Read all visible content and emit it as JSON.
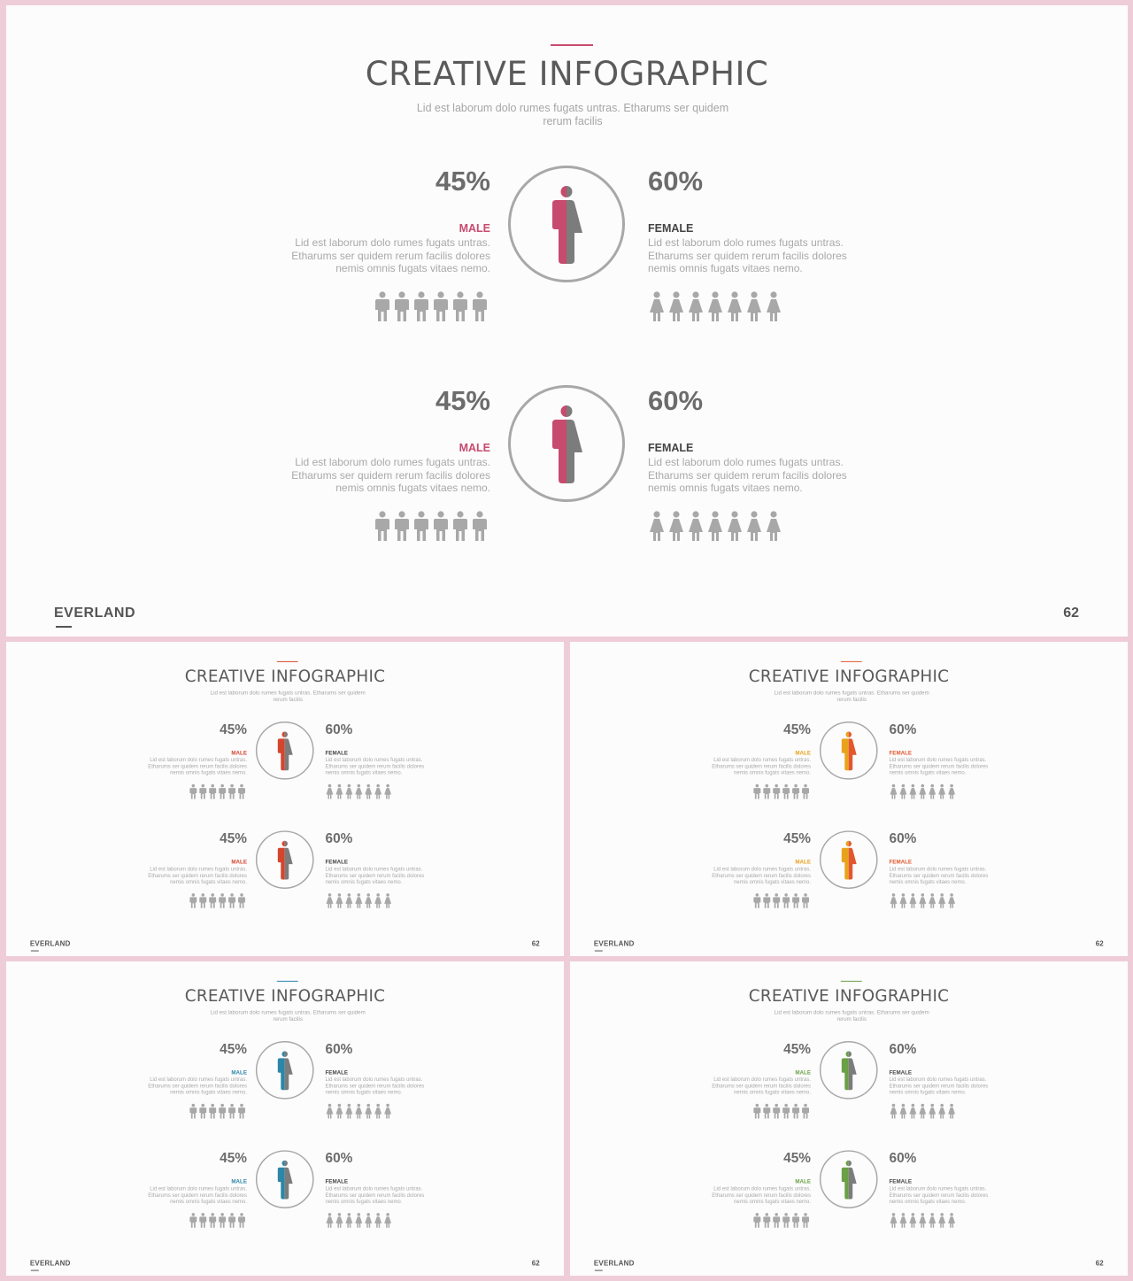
{
  "slides": [
    {
      "title": "CREATIVE INFOGRAPHIC",
      "subtitle": "Lid est laborum dolo rumes fugats untras. Etharums ser quidem rerum facilis",
      "accent": "#c74b6e",
      "male_label_color": "#c74b6e",
      "female_label_color": "#444444",
      "figure_left_color": "#c74b6e",
      "rows": [
        {
          "male": {
            "percent": "45%",
            "label": "MALE",
            "description": "Lid est laborum dolo rumes fugats untras. Etharums ser quidem rerum facilis dolores nemis omnis fugats vitaes nemo."
          },
          "female": {
            "percent": "60%",
            "label": "FEMALE",
            "description": "Lid est laborum dolo rumes fugats untras. Etharums ser quidem rerum facilis dolores nemis omnis fugats vitaes nemo."
          }
        },
        {
          "male": {
            "percent": "45%",
            "label": "MALE",
            "description": "Lid est laborum dolo rumes fugats untras. Etharums ser quidem rerum facilis dolores nemis omnis fugats vitaes nemo."
          },
          "female": {
            "percent": "60%",
            "label": "FEMALE",
            "description": "Lid est laborum dolo rumes fugats untras. Etharums ser quidem rerum facilis dolores nemis omnis fugats vitaes nemo."
          }
        }
      ],
      "brand": "EVERLAND",
      "page_number": "62"
    },
    {
      "title": "CREATIVE INFOGRAPHIC",
      "subtitle": "Lid est laborum dolo rumes fugats untras. Etharums ser quidem rerum facilis",
      "accent": "#d4452e",
      "male_label_color": "#d4452e",
      "female_label_color": "#444444",
      "figure_left_color": "#d4452e",
      "rows": [
        {
          "male": {
            "percent": "45%",
            "label": "MALE",
            "description": "Lid est laborum dolo rumes fugats untras. Etharums ser quidem rerum facilis dolores nemis omnis fugats vitaes nemo."
          },
          "female": {
            "percent": "60%",
            "label": "FEMALE",
            "description": "Lid est laborum dolo rumes fugats untras. Etharums ser quidem rerum facilis dolores nemis omnis fugats vitaes nemo."
          }
        },
        {
          "male": {
            "percent": "45%",
            "label": "MALE",
            "description": "Lid est laborum dolo rumes fugats untras. Etharums ser quidem rerum facilis dolores nemis omnis fugats vitaes nemo."
          },
          "female": {
            "percent": "60%",
            "label": "FEMALE",
            "description": "Lid est laborum dolo rumes fugats untras. Etharums ser quidem rerum facilis dolores nemis omnis fugats vitaes nemo."
          }
        }
      ],
      "brand": "EVERLAND",
      "page_number": "62"
    },
    {
      "title": "CREATIVE INFOGRAPHIC",
      "subtitle": "Lid est laborum dolo rumes fugats untras. Etharums ser quidem rerum facilis",
      "accent": "#e2582e",
      "male_label_color": "#e8a21c",
      "female_label_color": "#e2582e",
      "figure_left_color": "#e8a21c",
      "figure_right_color": "#e2582e",
      "rows": [
        {
          "male": {
            "percent": "45%",
            "label": "MALE",
            "description": "Lid est laborum dolo rumes fugats untras. Etharums ser quidem rerum facilis dolores nemis omnis fugats vitaes nemo."
          },
          "female": {
            "percent": "60%",
            "label": "FEMALE",
            "description": "Lid est laborum dolo rumes fugats untras. Etharums ser quidem rerum facilis dolores nemis omnis fugats vitaes nemo."
          }
        },
        {
          "male": {
            "percent": "45%",
            "label": "MALE",
            "description": "Lid est laborum dolo rumes fugats untras. Etharums ser quidem rerum facilis dolores nemis omnis fugats vitaes nemo."
          },
          "female": {
            "percent": "60%",
            "label": "FEMALE",
            "description": "Lid est laborum dolo rumes fugats untras. Etharums ser quidem rerum facilis dolores nemis omnis fugats vitaes nemo."
          }
        }
      ],
      "brand": "EVERLAND",
      "page_number": "62"
    },
    {
      "title": "CREATIVE INFOGRAPHIC",
      "subtitle": "Lid est laborum dolo rumes fugats untras. Etharums ser quidem rerum facilis",
      "accent": "#2b86a8",
      "male_label_color": "#2b86a8",
      "female_label_color": "#444444",
      "figure_left_color": "#2b86a8",
      "rows": [
        {
          "male": {
            "percent": "45%",
            "label": "MALE",
            "description": "Lid est laborum dolo rumes fugats untras. Etharums ser quidem rerum facilis dolores nemis omnis fugats vitaes nemo."
          },
          "female": {
            "percent": "60%",
            "label": "FEMALE",
            "description": "Lid est laborum dolo rumes fugats untras. Etharums ser quidem rerum facilis dolores nemis omnis fugats vitaes nemo."
          }
        },
        {
          "male": {
            "percent": "45%",
            "label": "MALE",
            "description": "Lid est laborum dolo rumes fugats untras. Etharums ser quidem rerum facilis dolores nemis omnis fugats vitaes nemo."
          },
          "female": {
            "percent": "60%",
            "label": "FEMALE",
            "description": "Lid est laborum dolo rumes fugats untras. Etharums ser quidem rerum facilis dolores nemis omnis fugats vitaes nemo."
          }
        }
      ],
      "brand": "EVERLAND",
      "page_number": "62"
    },
    {
      "title": "CREATIVE INFOGRAPHIC",
      "subtitle": "Lid est laborum dolo rumes fugats untras. Etharums ser quidem rerum facilis",
      "accent": "#6aa046",
      "male_label_color": "#6aa046",
      "female_label_color": "#444444",
      "figure_left_color": "#6aa046",
      "rows": [
        {
          "male": {
            "percent": "45%",
            "label": "MALE",
            "description": "Lid est laborum dolo rumes fugats untras. Etharums ser quidem rerum facilis dolores nemis omnis fugats vitaes nemo."
          },
          "female": {
            "percent": "60%",
            "label": "FEMALE",
            "description": "Lid est laborum dolo rumes fugats untras. Etharums ser quidem rerum facilis dolores nemis omnis fugats vitaes nemo."
          }
        },
        {
          "male": {
            "percent": "45%",
            "label": "MALE",
            "description": "Lid est laborum dolo rumes fugats untras. Etharums ser quidem rerum facilis dolores nemis omnis fugats vitaes nemo."
          },
          "female": {
            "percent": "60%",
            "label": "FEMALE",
            "description": "Lid est laborum dolo rumes fugats untras. Etharums ser quidem rerum facilis dolores nemis omnis fugats vitaes nemo."
          }
        }
      ],
      "brand": "EVERLAND",
      "page_number": "62"
    }
  ],
  "icons": {
    "male_figure": "male-person-icon",
    "female_figure": "female-person-icon",
    "gender_symbol": "male-female-split-icon",
    "male_icon_count": 6,
    "female_icon_count": 7,
    "icon_color": "#a8a8a8"
  }
}
